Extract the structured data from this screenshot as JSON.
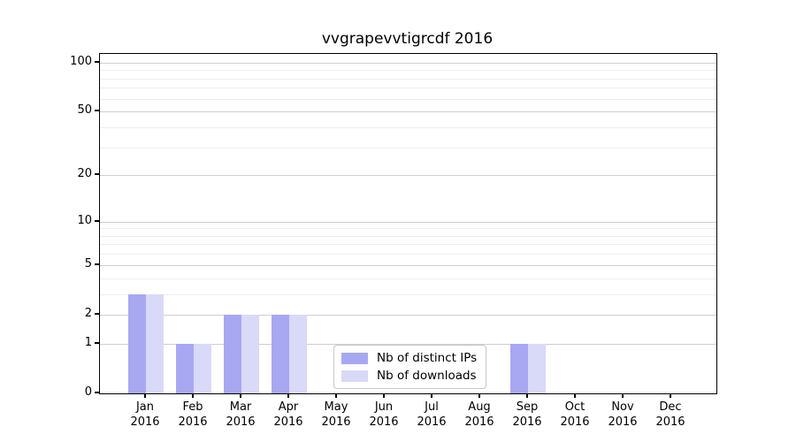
{
  "title": "vvgrapevvtigrcdf 2016",
  "chart_data": {
    "type": "bar",
    "title": "vvgrapevvtigrcdf 2016",
    "scale": "log1p",
    "categories": [
      "Jan",
      "Feb",
      "Mar",
      "Apr",
      "May",
      "Jun",
      "Jul",
      "Aug",
      "Sep",
      "Oct",
      "Nov",
      "Dec"
    ],
    "year_label": "2016",
    "series": [
      {
        "name": "Nb of distinct IPs",
        "color": "#a8a8f2",
        "values": [
          3,
          1,
          2,
          2,
          0,
          0,
          0,
          0,
          1,
          0,
          0,
          0
        ]
      },
      {
        "name": "Nb of downloads",
        "color": "#d9d9f8",
        "values": [
          3,
          1,
          2,
          2,
          0,
          0,
          0,
          0,
          1,
          0,
          0,
          0
        ]
      }
    ],
    "y_major_ticks": [
      0,
      1,
      2,
      5,
      10,
      20,
      50,
      100
    ],
    "y_minor_ticks": [
      3,
      4,
      6,
      7,
      8,
      9,
      30,
      40,
      60,
      70,
      80,
      90
    ],
    "ylim": [
      0,
      113
    ],
    "xlabel": "",
    "ylabel": "",
    "grid": "both",
    "legend_position": "lower center"
  }
}
